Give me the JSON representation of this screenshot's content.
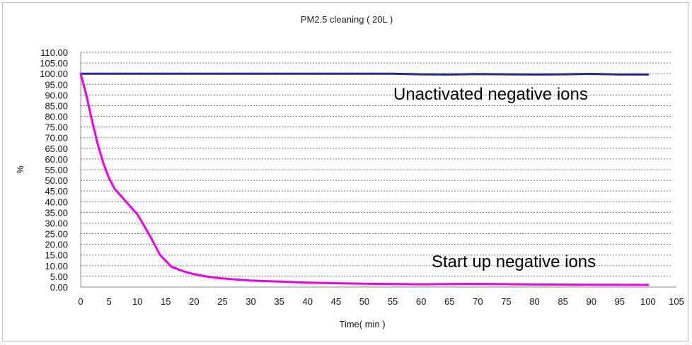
{
  "chart_data": {
    "type": "line",
    "title": "PM2.5 cleaning ( 20L )",
    "xlabel": "Time( min )",
    "ylabel": "%",
    "xlim": [
      0,
      105
    ],
    "ylim": [
      0,
      110
    ],
    "x_ticks": [
      "0",
      "5",
      "10",
      "15",
      "20",
      "25",
      "30",
      "35",
      "40",
      "45",
      "50",
      "55",
      "60",
      "65",
      "70",
      "75",
      "80",
      "85",
      "90",
      "95",
      "100",
      "105"
    ],
    "y_ticks": [
      "0.00",
      "5.00",
      "10.00",
      "15.00",
      "20.00",
      "25.00",
      "30.00",
      "35.00",
      "40.00",
      "45.00",
      "50.00",
      "55.00",
      "60.00",
      "65.00",
      "70.00",
      "75.00",
      "80.00",
      "85.00",
      "90.00",
      "95.00",
      "100.00",
      "105.00",
      "110.00"
    ],
    "grid": true,
    "legend": "none",
    "series": [
      {
        "name": "Unactivated negative ions",
        "color": "#1f2a8c",
        "x": [
          0,
          10,
          20,
          30,
          40,
          50,
          55,
          60,
          65,
          70,
          75,
          80,
          85,
          90,
          95,
          100
        ],
        "y": [
          100,
          100,
          100,
          100,
          100,
          100,
          100,
          99.7,
          99.6,
          99.8,
          99.7,
          99.6,
          99.7,
          99.9,
          99.6,
          99.6
        ]
      },
      {
        "name": "Start up negative ions",
        "color": "#ee00ee",
        "x": [
          0,
          1,
          2,
          3,
          4,
          5,
          6,
          8,
          10,
          12,
          14,
          16,
          18,
          20,
          22,
          25,
          30,
          35,
          40,
          45,
          50,
          60,
          70,
          80,
          90,
          100
        ],
        "y": [
          100,
          90,
          78,
          67,
          58,
          51,
          46,
          40,
          34,
          25,
          15,
          9.5,
          7.5,
          6,
          5,
          4,
          3,
          2.6,
          2.1,
          1.8,
          1.6,
          1.3,
          1.5,
          1.2,
          1.1,
          1.0
        ]
      }
    ]
  }
}
